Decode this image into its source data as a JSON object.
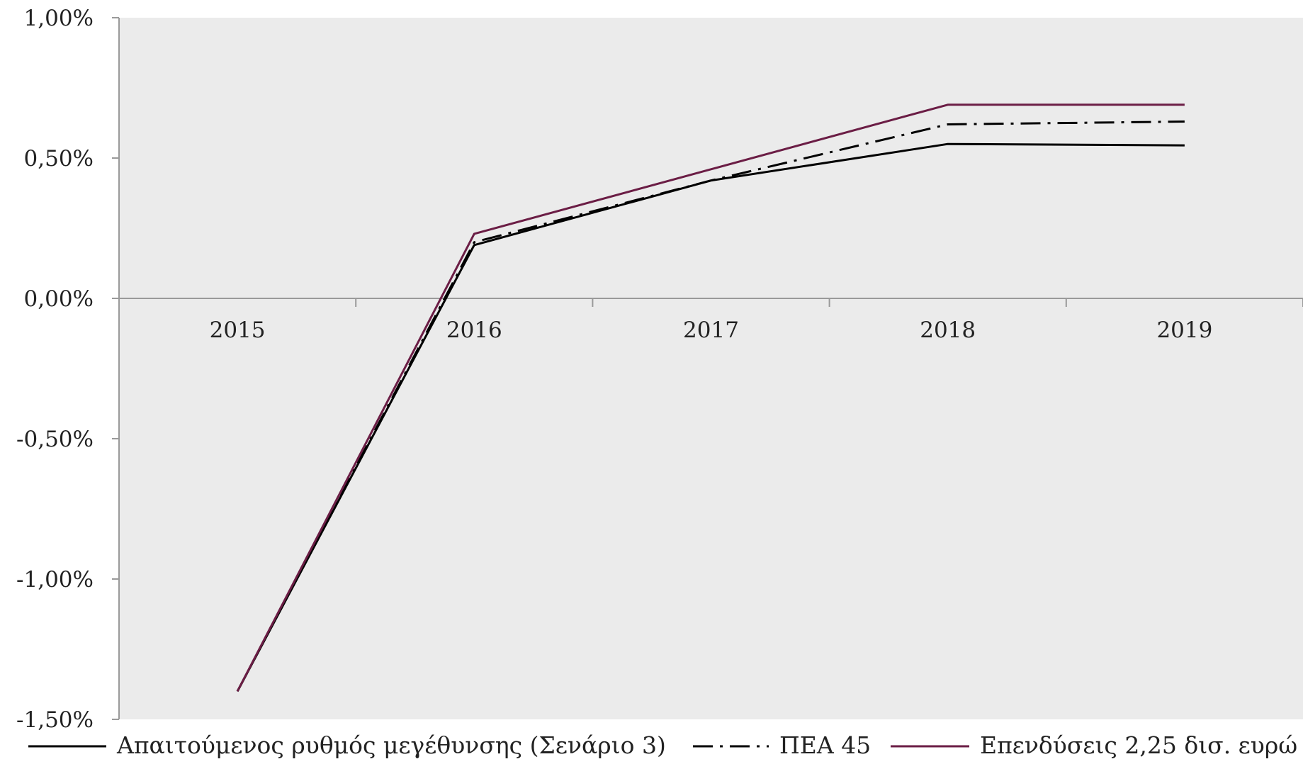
{
  "chart_data": {
    "type": "line",
    "x": [
      "2015",
      "2016",
      "2017",
      "2018",
      "2019"
    ],
    "ylim": [
      -1.5,
      1.0
    ],
    "yticks": [
      -1.5,
      -1.0,
      -0.5,
      0.0,
      0.5,
      1.0
    ],
    "ytick_labels": [
      "-1,50%",
      "-1,00%",
      "-0,50%",
      "0,00%",
      "0,50%",
      "1,00%"
    ],
    "grid": false,
    "legend_position": "bottom",
    "plot_background": "#ebebeb",
    "series": [
      {
        "name": "Απαιτούμενος ρυθμός μεγέθυνσης (Σενάριο 3)",
        "values": [
          -1.4,
          0.19,
          0.42,
          0.55,
          0.545
        ],
        "color": "#000000",
        "dash": "solid"
      },
      {
        "name": "ΠΕΑ 45",
        "values": [
          -1.4,
          0.2,
          0.42,
          0.62,
          0.63
        ],
        "color": "#000000",
        "dash": "dashdot"
      },
      {
        "name": "Επενδύσεις 2,25 δισ. ευρώ",
        "values": [
          -1.4,
          0.23,
          0.46,
          0.69,
          0.69
        ],
        "color": "#6b1d45",
        "dash": "solid"
      }
    ]
  }
}
